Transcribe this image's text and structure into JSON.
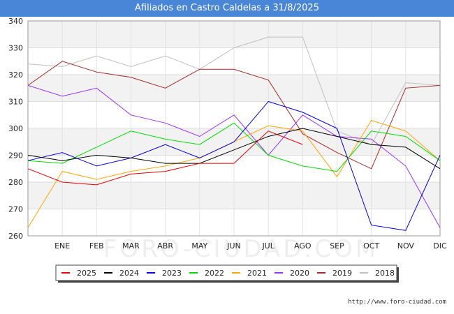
{
  "header": {
    "title": "Afiliados en Castro Caldelas a 31/8/2025"
  },
  "footer": {
    "source": "http://www.foro-ciudad.com"
  },
  "watermark": "FORO-CIUDAD.COM",
  "chart_data": {
    "type": "line",
    "title": "Afiliados en Castro Caldelas a 31/8/2025",
    "xlabel": "",
    "ylabel": "",
    "categories": [
      "",
      "ENE",
      "FEB",
      "MAR",
      "ABR",
      "MAY",
      "JUN",
      "JUL",
      "AGO",
      "SEP",
      "OCT",
      "NOV",
      "DIC"
    ],
    "ylim": [
      260,
      340
    ],
    "yticks": [
      260,
      270,
      280,
      290,
      300,
      310,
      320,
      330,
      340
    ],
    "grid": "horizontal bands",
    "legend_position": "bottom",
    "series": [
      {
        "name": "2025",
        "color": "#e60000",
        "values": [
          285,
          280,
          279,
          283,
          284,
          287,
          287,
          299,
          294,
          null,
          null,
          null,
          null
        ]
      },
      {
        "name": "2024",
        "color": "#000000",
        "values": [
          290,
          288,
          290,
          289,
          287,
          287,
          292,
          297,
          300,
          297,
          294,
          293,
          285
        ]
      },
      {
        "name": "2023",
        "color": "#0000dd",
        "values": [
          288,
          291,
          286,
          289,
          294,
          289,
          295,
          310,
          306,
          300,
          264,
          262,
          290
        ]
      },
      {
        "name": "2022",
        "color": "#00dd00",
        "values": [
          288,
          287,
          293,
          299,
          296,
          294,
          302,
          290,
          286,
          284,
          299,
          297,
          288
        ]
      },
      {
        "name": "2021",
        "color": "#ffa500",
        "values": [
          263,
          284,
          281,
          284,
          286,
          289,
          295,
          301,
          299,
          282,
          303,
          299,
          288
        ]
      },
      {
        "name": "2020",
        "color": "#9b30ff",
        "values": [
          316,
          312,
          315,
          305,
          302,
          297,
          305,
          290,
          305,
          297,
          296,
          286,
          263
        ]
      },
      {
        "name": "2019",
        "color": "#a52a2a",
        "values": [
          316,
          325,
          321,
          319,
          315,
          322,
          322,
          318,
          298,
          291,
          285,
          315,
          316
        ]
      },
      {
        "name": "2018",
        "color": "#c0c0c0",
        "values": [
          324,
          323,
          327,
          323,
          327,
          322,
          330,
          334,
          334,
          299,
          294,
          317,
          316
        ]
      }
    ]
  }
}
